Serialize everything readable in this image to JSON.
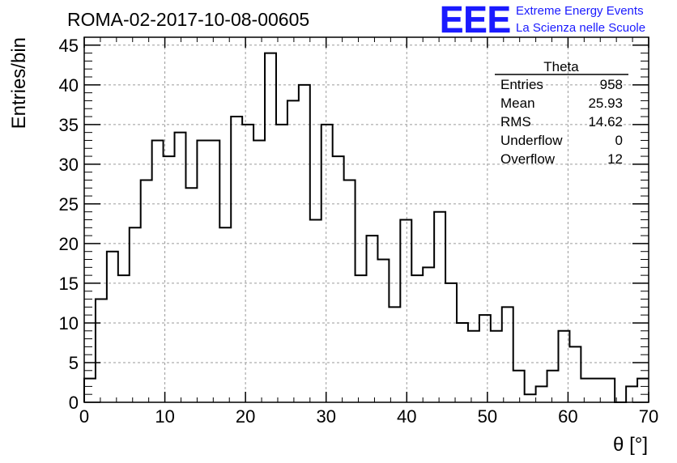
{
  "chart_data": {
    "type": "histogram",
    "title": "ROMA-02-2017-10-08-00605",
    "xlabel": "θ [°]",
    "ylabel": "Entries/bin",
    "xlim": [
      0,
      70
    ],
    "ylim": [
      0,
      46
    ],
    "grid": true,
    "bin_width": 1.4,
    "x_ticks": [
      0,
      10,
      20,
      30,
      40,
      50,
      60,
      70
    ],
    "y_ticks": [
      0,
      5,
      10,
      15,
      20,
      25,
      30,
      35,
      40,
      45
    ],
    "values": [
      3,
      13,
      19,
      16,
      22,
      28,
      33,
      31,
      34,
      27,
      33,
      33,
      22,
      36,
      35,
      33,
      44,
      35,
      38,
      40,
      23,
      35,
      31,
      28,
      16,
      21,
      18,
      12,
      23,
      16,
      17,
      24,
      15,
      10,
      9,
      11,
      9,
      12,
      4,
      1,
      2,
      4,
      9,
      7,
      3,
      3,
      3,
      0,
      2,
      3
    ]
  },
  "stats_box": {
    "title": "Theta",
    "rows": [
      {
        "label": "Entries",
        "value": "958"
      },
      {
        "label": "Mean",
        "value": "25.93"
      },
      {
        "label": "RMS",
        "value": "14.62"
      },
      {
        "label": "Underflow",
        "value": "0"
      },
      {
        "label": "Overflow",
        "value": "12"
      }
    ]
  },
  "logo": {
    "text": "EEE",
    "line1": "Extreme Energy Events",
    "line2": "La Scienza nelle Scuole",
    "color": "#1a1aff"
  }
}
